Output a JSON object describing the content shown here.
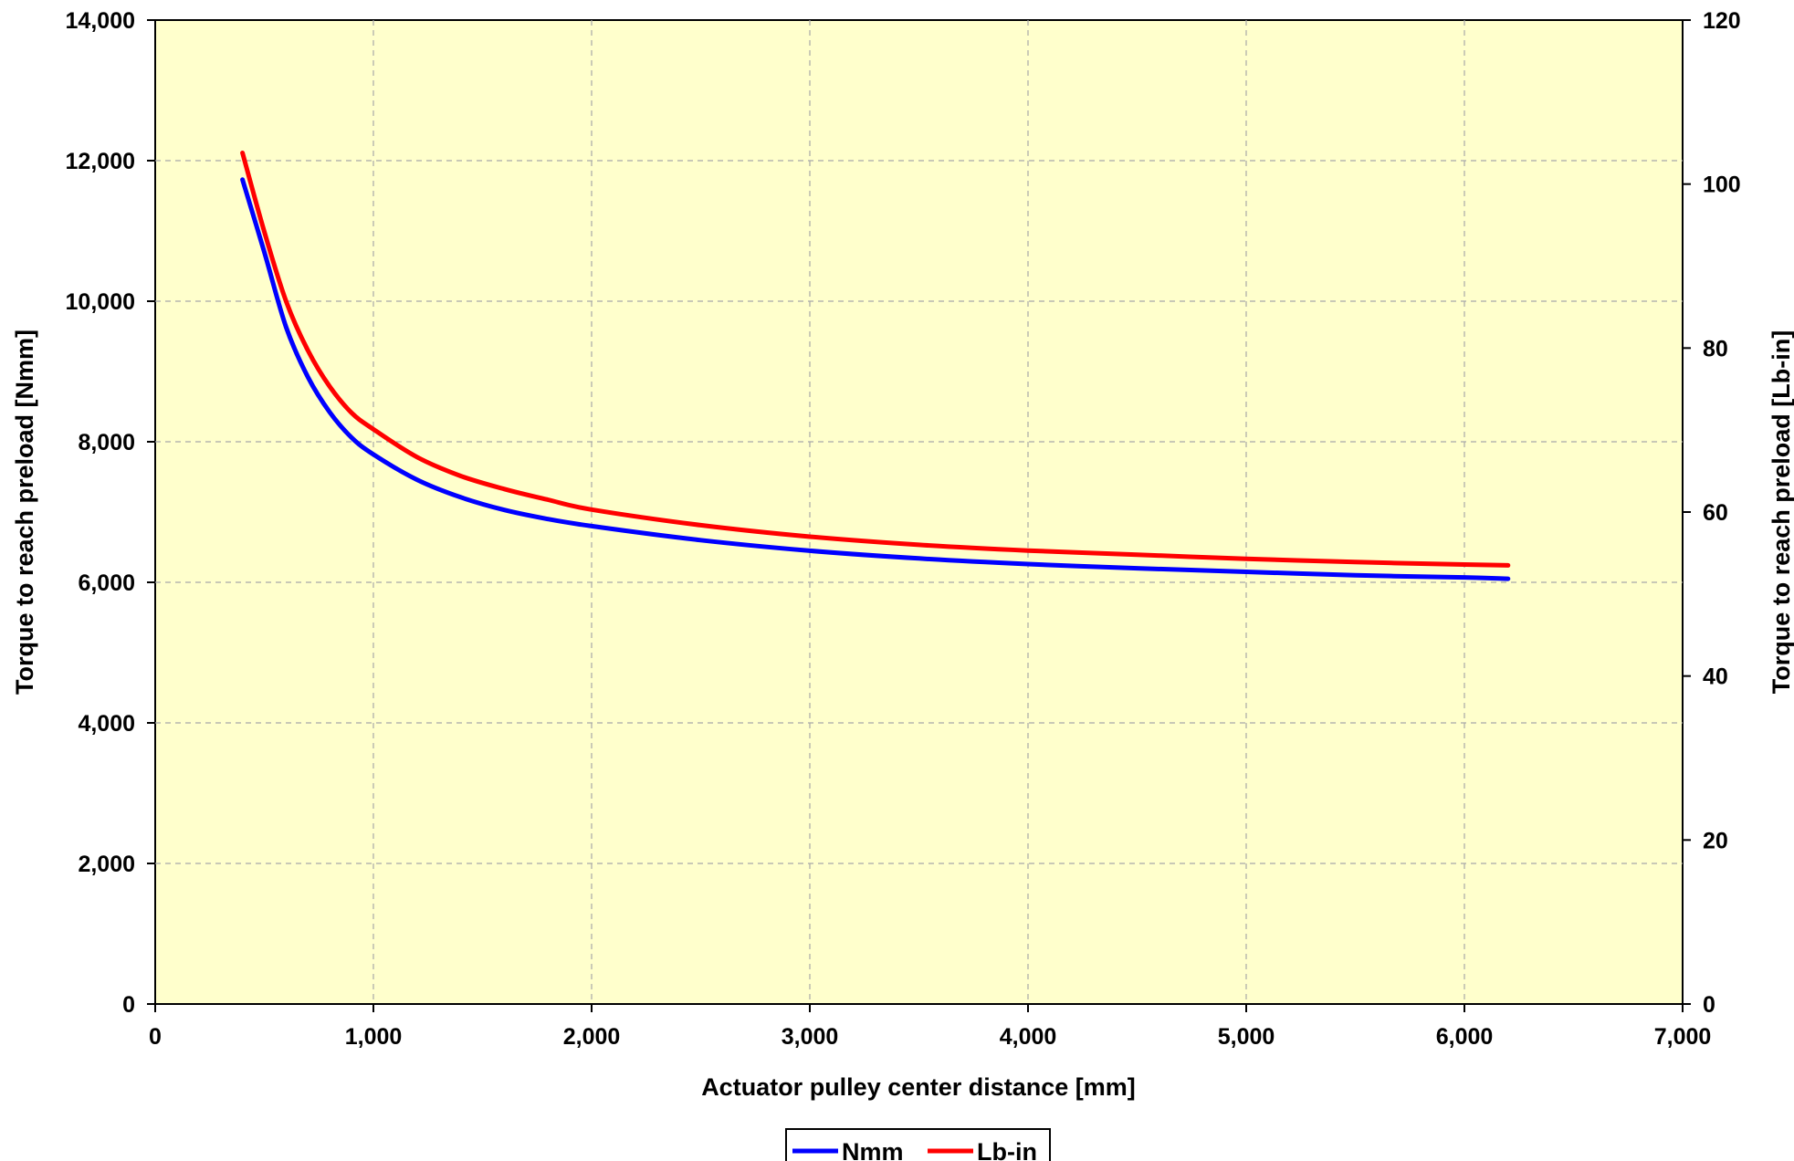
{
  "chart_data": {
    "type": "line",
    "title": "",
    "xlabel": "Actuator pulley center distance [mm]",
    "ylabel": "Torque to reach preload [Nmm]",
    "y2label": "Torque to reach preload [Lb-in]",
    "xlim": [
      0,
      7000
    ],
    "ylim": [
      0,
      14000
    ],
    "y2lim": [
      0,
      120
    ],
    "x_ticks": [
      "0",
      "1,000",
      "2,000",
      "3,000",
      "4,000",
      "5,000",
      "6,000",
      "7,000"
    ],
    "y_ticks": [
      "0",
      "2,000",
      "4,000",
      "6,000",
      "8,000",
      "10,000",
      "12,000",
      "14,000"
    ],
    "y2_ticks": [
      "0",
      "20",
      "40",
      "60",
      "80",
      "100",
      "120"
    ],
    "grid": true,
    "legend_position": "bottom-center",
    "plot_background": "#FFFFCC",
    "series": [
      {
        "name": "Nmm",
        "axis": "left",
        "color": "#0000FF",
        "x": [
          400,
          500,
          600,
          700,
          800,
          900,
          1000,
          1200,
          1400,
          1600,
          1800,
          2000,
          2500,
          3000,
          3500,
          4000,
          4500,
          5000,
          5500,
          6000,
          6200
        ],
        "y": [
          11730,
          10700,
          9630,
          8920,
          8420,
          8060,
          7820,
          7460,
          7210,
          7030,
          6900,
          6800,
          6600,
          6450,
          6340,
          6260,
          6200,
          6150,
          6100,
          6070,
          6050
        ]
      },
      {
        "name": "Lb-in",
        "axis": "right",
        "color": "#FF0000",
        "x": [
          400,
          500,
          600,
          700,
          800,
          900,
          1000,
          1200,
          1400,
          1600,
          1800,
          2000,
          2500,
          3000,
          3500,
          4000,
          4500,
          5000,
          5500,
          6000,
          6200
        ],
        "y": [
          103.8,
          94.2,
          85.7,
          79.7,
          75.3,
          72.1,
          70.1,
          66.7,
          64.4,
          62.8,
          61.5,
          60.3,
          58.4,
          57.0,
          56.0,
          55.3,
          54.8,
          54.3,
          53.9,
          53.6,
          53.5
        ]
      }
    ]
  }
}
